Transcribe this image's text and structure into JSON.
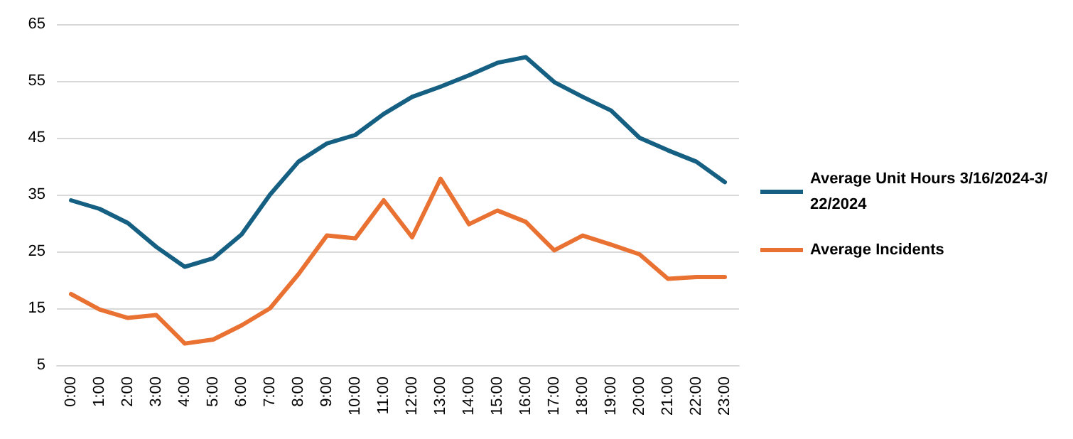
{
  "chart_data": {
    "type": "line",
    "categories": [
      "0:00",
      "1:00",
      "2:00",
      "3:00",
      "4:00",
      "5:00",
      "6:00",
      "7:00",
      "8:00",
      "9:00",
      "10:00",
      "11:00",
      "12:00",
      "13:00",
      "14:00",
      "15:00",
      "16:00",
      "17:00",
      "18:00",
      "19:00",
      "20:00",
      "21:00",
      "22:00",
      "23:00"
    ],
    "series": [
      {
        "name": "Average Unit Hours 3/16/2024-3/22/2024",
        "color": "#156082",
        "values": [
          34,
          32.5,
          30,
          25.8,
          22.3,
          23.8,
          28,
          35,
          40.8,
          44,
          45.5,
          49.2,
          52.2,
          54,
          56,
          58.2,
          59.2,
          54.8,
          52.2,
          49.8,
          45,
          42.8,
          40.8,
          37.2
        ]
      },
      {
        "name": "Average Incidents",
        "color": "#e97132",
        "values": [
          17.5,
          14.8,
          13.3,
          13.8,
          8.8,
          9.5,
          12,
          15,
          21,
          27.8,
          27.3,
          34,
          27.5,
          37.8,
          29.8,
          32.2,
          30.2,
          25.2,
          27.8,
          26.2,
          24.5,
          20.2,
          20.5,
          20.5
        ]
      }
    ],
    "ylim": [
      5,
      65
    ],
    "yticks": [
      5,
      15,
      25,
      35,
      45,
      55,
      65
    ],
    "grid": "y",
    "legend": "right",
    "marker": "none",
    "line_style": "solid"
  }
}
